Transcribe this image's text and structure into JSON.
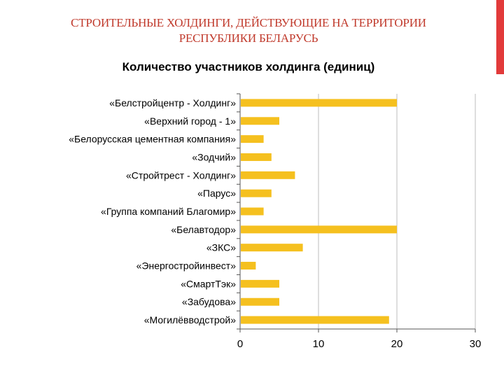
{
  "slide": {
    "title_line1": "СТРОИТЕЛЬНЫЕ ХОЛДИНГИ, ДЕЙСТВУЮЩИЕ НА ТЕРРИТОРИИ",
    "title_line2": "РЕСПУБЛИКИ БЕЛАРУСЬ",
    "accent_color": "#e23a3a",
    "title_color": "#c0392b"
  },
  "chart_data": {
    "type": "bar",
    "orientation": "horizontal",
    "title": "Количество участников холдинга (единиц)",
    "categories": [
      "«Белстройцентр - Холдинг»",
      "«Верхний город - 1»",
      "«Белорусская цементная компания»",
      "«Зодчий»",
      "«Стройтрест - Холдинг»",
      "«Парус»",
      "«Группа компаний Благомир»",
      "«Белавтодор»",
      "«ЗКС»",
      "«Энергостройинвест»",
      "«СмартТэк»",
      "«Забудова»",
      "«Могилёвводстрой»"
    ],
    "values": [
      20,
      5,
      3,
      4,
      7,
      4,
      3,
      20,
      8,
      2,
      5,
      5,
      19
    ],
    "xlim": [
      0,
      30
    ],
    "xticks": [
      "0",
      "10",
      "20",
      "30"
    ],
    "bar_color": "#f5c01f",
    "grid": "vertical lines at ticks",
    "legend": "none"
  }
}
